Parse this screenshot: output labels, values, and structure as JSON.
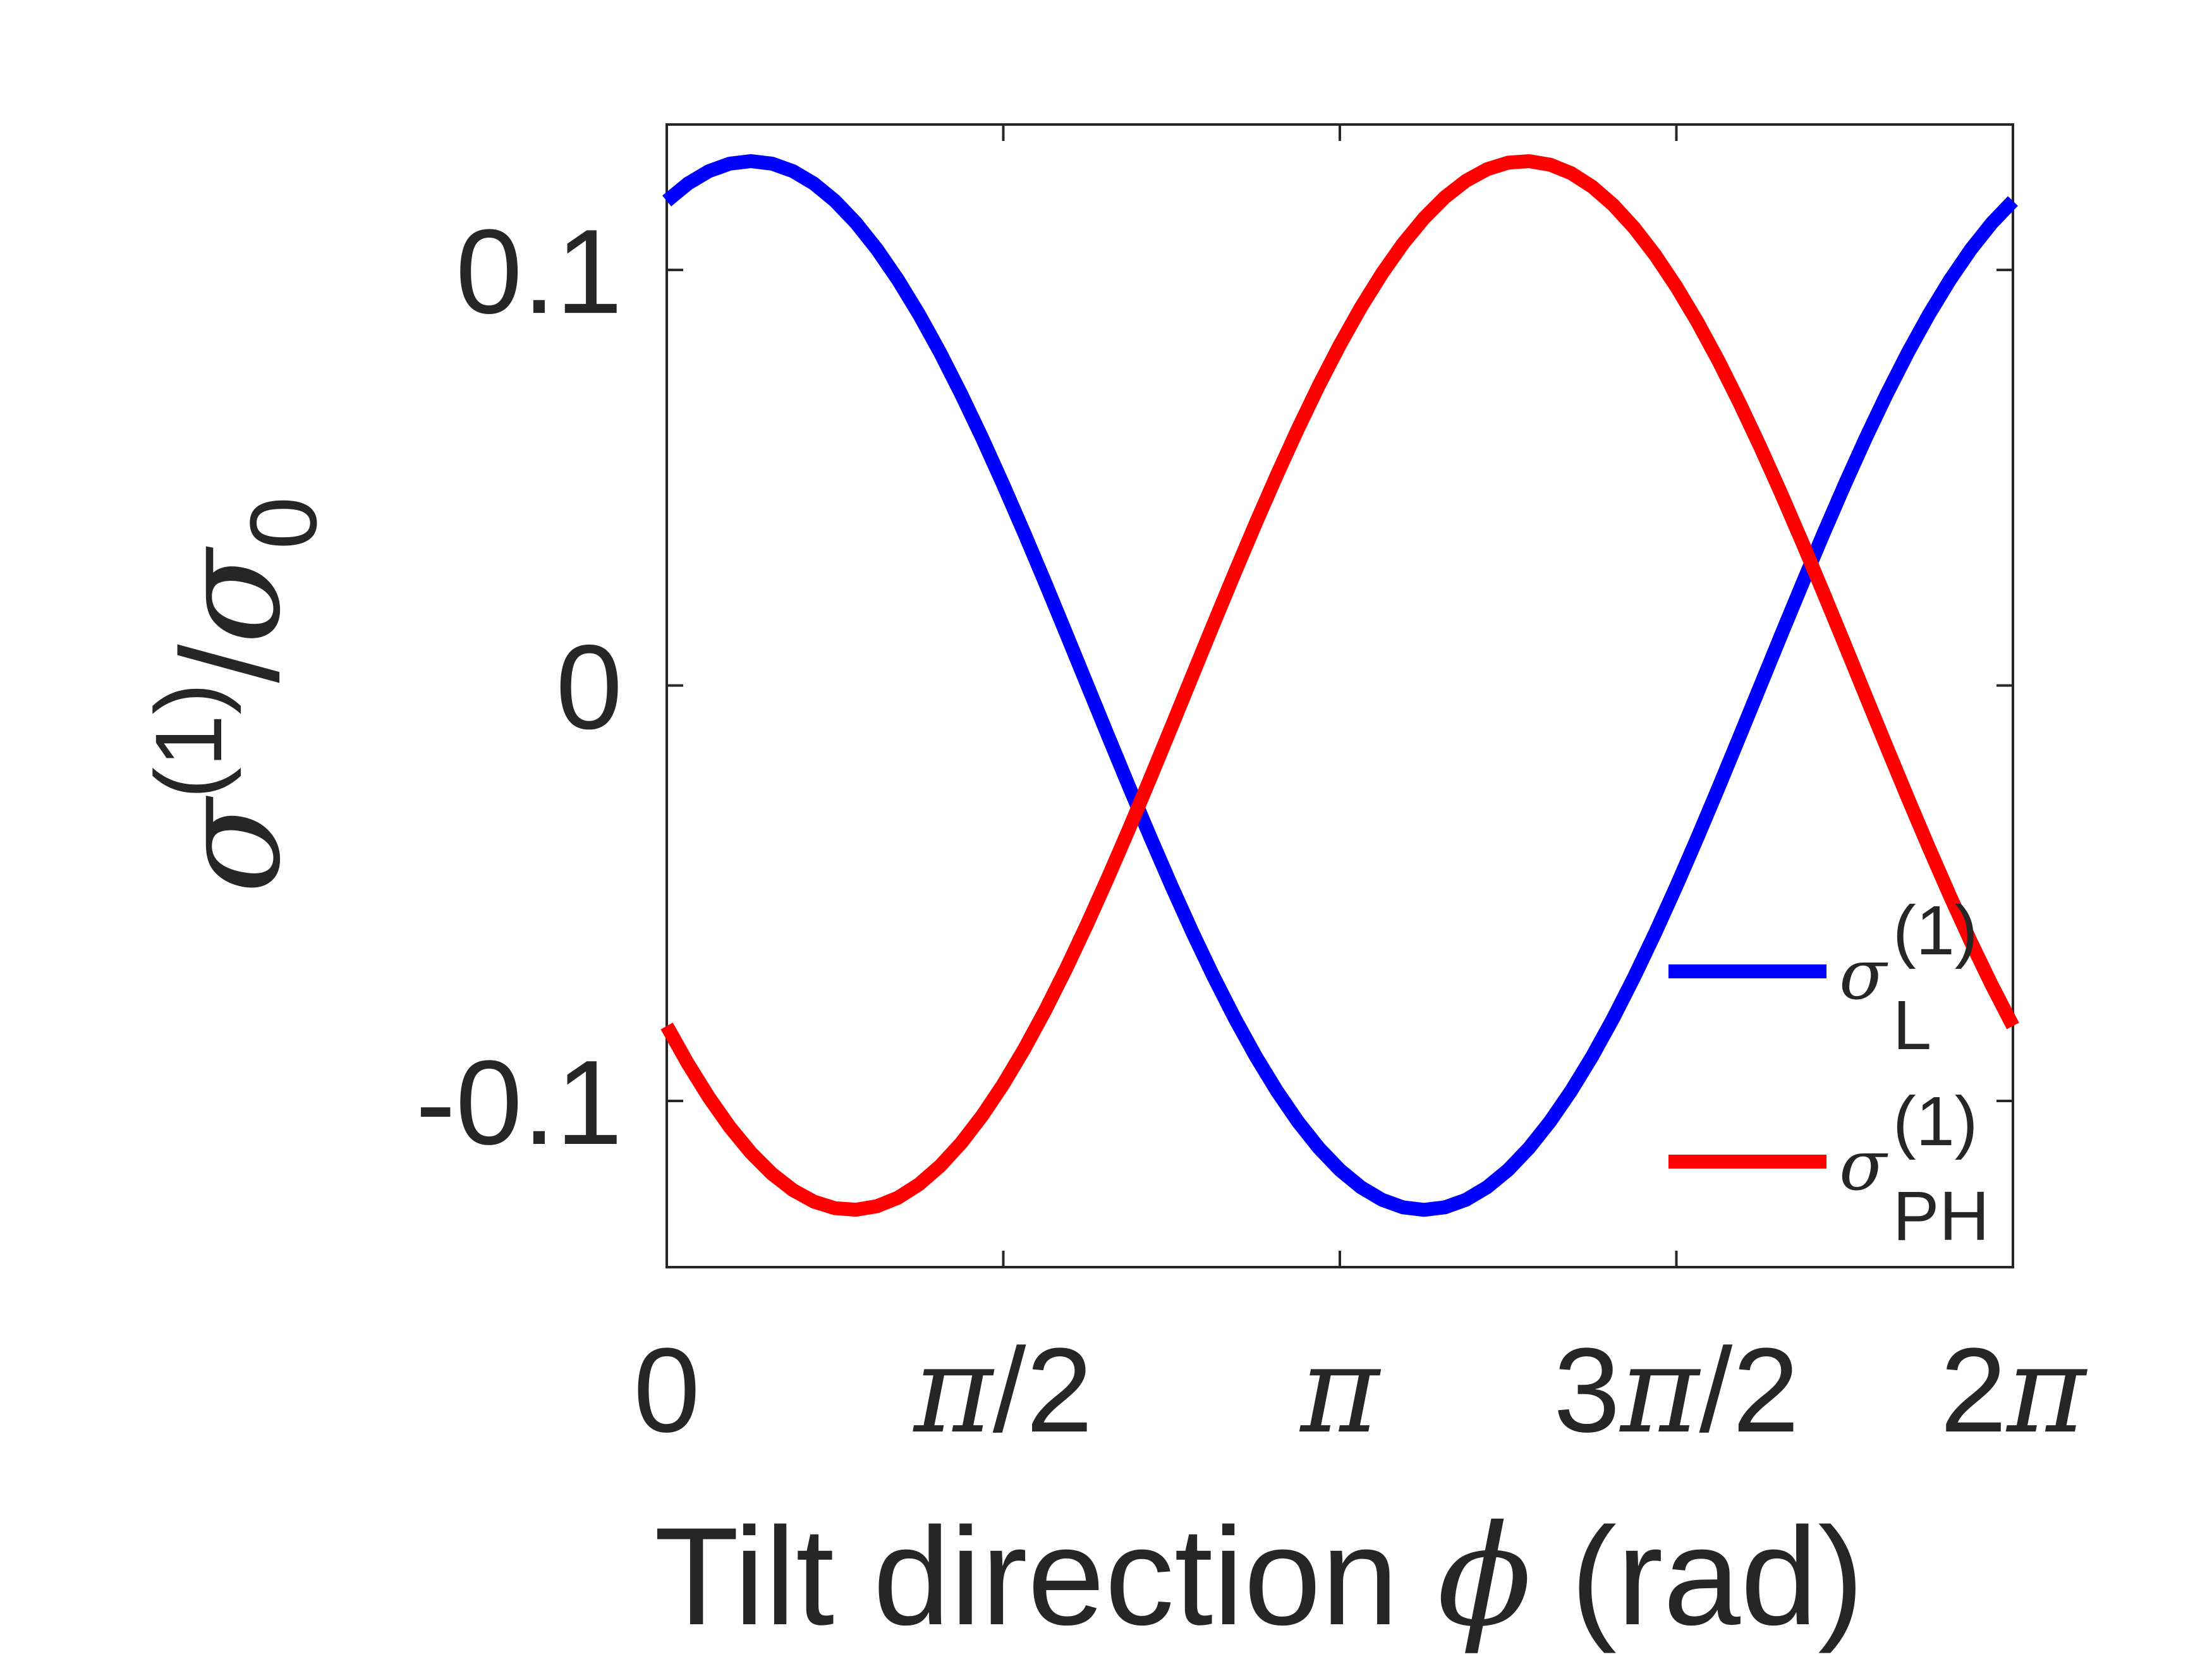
{
  "chart_data": {
    "type": "line",
    "xlabel": "Tilt direction ϕ (rad)",
    "ylabel": "σ(1)/σ0",
    "xlim": [
      0,
      6.2832
    ],
    "ylim": [
      -0.14,
      0.135
    ],
    "x_ticks": [
      {
        "value": 0,
        "label": "0"
      },
      {
        "value": 1.5708,
        "label": "π/2"
      },
      {
        "value": 3.1416,
        "label": "π"
      },
      {
        "value": 4.7124,
        "label": "3π/2"
      },
      {
        "value": 6.2832,
        "label": "2π"
      }
    ],
    "y_ticks": [
      {
        "value": 0.1,
        "label": "0.1"
      },
      {
        "value": 0,
        "label": "0"
      },
      {
        "value": -0.1,
        "label": "-0.1"
      }
    ],
    "grid": false,
    "legend_position": "bottom-right",
    "series": [
      {
        "name": "σL(1)",
        "color": "#0000ff",
        "model": {
          "amplitude": 0.1262,
          "peak_phase": 0.3927,
          "offset": 0
        }
      },
      {
        "name": "σPH(1)",
        "color": "#ff0000",
        "model": {
          "amplitude": 0.1262,
          "peak_phase": 4.0055,
          "offset": 0
        }
      }
    ]
  },
  "legend": [
    {
      "symbol": "σ",
      "sup": "(1)",
      "sub": "L",
      "color": "#0000ff"
    },
    {
      "symbol": "σ",
      "sup": "(1)",
      "sub": "PH",
      "color": "#ff0000"
    }
  ],
  "axis_labels": {
    "x_main": "Tilt direction ",
    "x_symbol": "ϕ",
    "x_unit": " (rad)",
    "y_sigma1": "σ",
    "y_sup": "(1)",
    "y_slash": "/",
    "y_sigma0": "σ",
    "y_sub": "0"
  }
}
